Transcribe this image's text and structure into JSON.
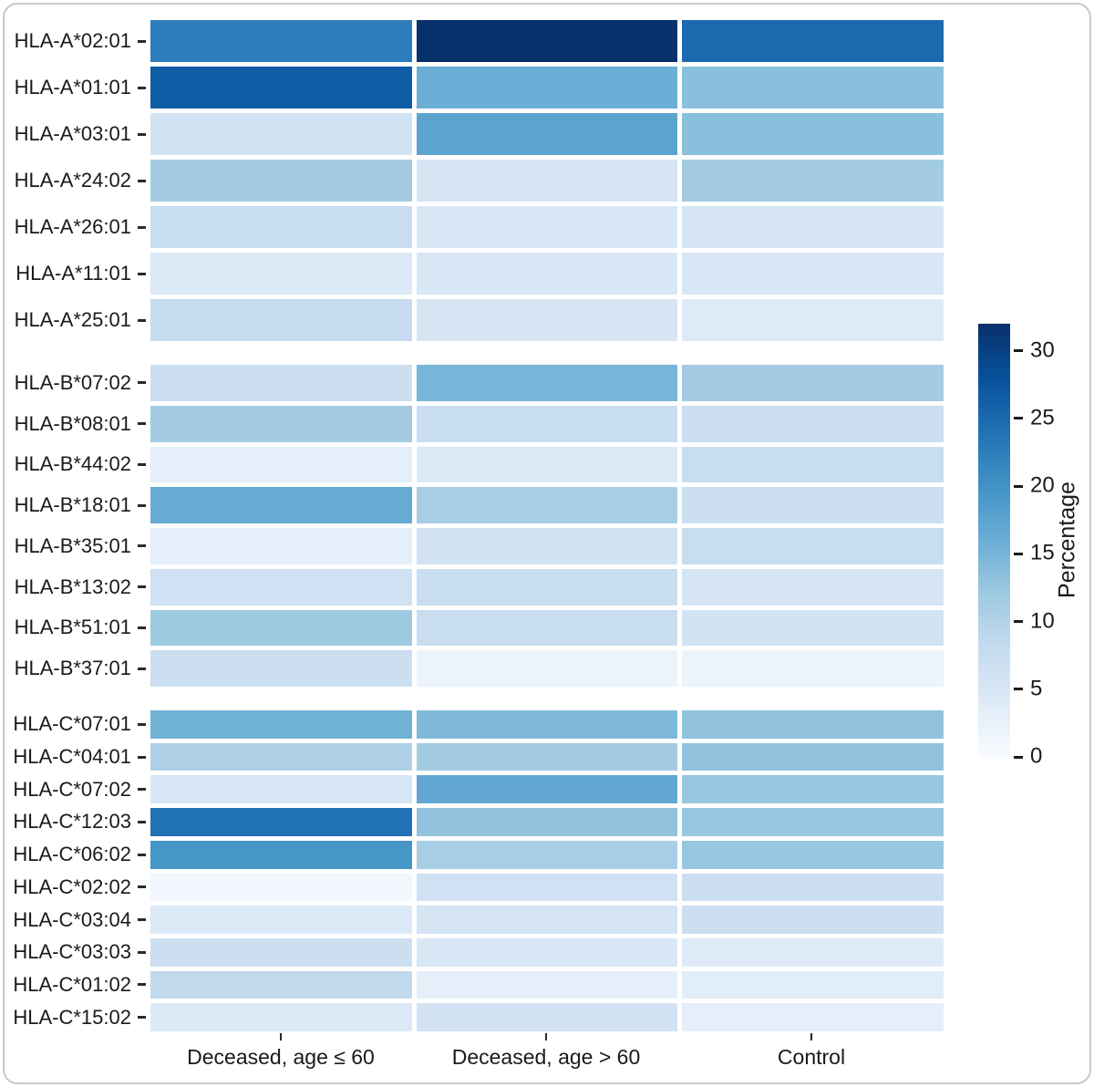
{
  "chart_data": {
    "type": "heatmap",
    "columns": [
      "Deceased, age ≤ 60",
      "Deceased, age > 60",
      "Control"
    ],
    "colorbar": {
      "label": "Percentage",
      "ticks": [
        0,
        5,
        10,
        15,
        20,
        25,
        30
      ],
      "domain": [
        0,
        32
      ],
      "palette": [
        "#f7fbff",
        "#deebf7",
        "#c6dbef",
        "#9ecae1",
        "#6baed6",
        "#4292c6",
        "#2171b5",
        "#08519c",
        "#08306b"
      ],
      "legend_position": "right"
    },
    "grid": "off",
    "groups": [
      {
        "gene": "HLA-A",
        "rows": [
          {
            "allele": "HLA-A*02:01",
            "values": [
              22.5,
              32.0,
              25.0
            ]
          },
          {
            "allele": "HLA-A*01:01",
            "values": [
              26.5,
              16.0,
              13.5
            ]
          },
          {
            "allele": "HLA-A*03:01",
            "values": [
              6.0,
              17.5,
              13.5
            ]
          },
          {
            "allele": "HLA-A*24:02",
            "values": [
              11.5,
              5.5,
              11.5
            ]
          },
          {
            "allele": "HLA-A*26:01",
            "values": [
              7.5,
              5.0,
              5.5
            ]
          },
          {
            "allele": "HLA-A*11:01",
            "values": [
              4.5,
              5.0,
              5.0
            ]
          },
          {
            "allele": "HLA-A*25:01",
            "values": [
              8.0,
              5.5,
              4.0
            ]
          }
        ]
      },
      {
        "gene": "HLA-B",
        "rows": [
          {
            "allele": "HLA-B*07:02",
            "values": [
              7.0,
              15.0,
              11.5
            ]
          },
          {
            "allele": "HLA-B*08:01",
            "values": [
              11.5,
              7.5,
              7.0
            ]
          },
          {
            "allele": "HLA-B*44:02",
            "values": [
              3.0,
              4.5,
              7.5
            ]
          },
          {
            "allele": "HLA-B*18:01",
            "values": [
              16.5,
              11.0,
              7.0
            ]
          },
          {
            "allele": "HLA-B*35:01",
            "values": [
              3.0,
              6.0,
              7.5
            ]
          },
          {
            "allele": "HLA-B*13:02",
            "values": [
              6.5,
              7.5,
              5.5
            ]
          },
          {
            "allele": "HLA-B*51:01",
            "values": [
              12.0,
              7.5,
              6.0
            ]
          },
          {
            "allele": "HLA-B*37:01",
            "values": [
              7.0,
              2.0,
              2.0
            ]
          }
        ]
      },
      {
        "gene": "HLA-C",
        "rows": [
          {
            "allele": "HLA-C*07:01",
            "values": [
              15.5,
              14.5,
              13.0
            ]
          },
          {
            "allele": "HLA-C*04:01",
            "values": [
              10.5,
              11.5,
              13.0
            ]
          },
          {
            "allele": "HLA-C*07:02",
            "values": [
              5.0,
              17.0,
              12.5
            ]
          },
          {
            "allele": "HLA-C*12:03",
            "values": [
              24.0,
              13.0,
              12.5
            ]
          },
          {
            "allele": "HLA-C*06:02",
            "values": [
              19.5,
              11.0,
              12.5
            ]
          },
          {
            "allele": "HLA-C*02:02",
            "values": [
              1.0,
              6.5,
              7.0
            ]
          },
          {
            "allele": "HLA-C*03:04",
            "values": [
              4.5,
              5.5,
              7.0
            ]
          },
          {
            "allele": "HLA-C*03:03",
            "values": [
              7.0,
              5.0,
              4.0
            ]
          },
          {
            "allele": "HLA-C*01:02",
            "values": [
              8.5,
              3.0,
              3.5
            ]
          },
          {
            "allele": "HLA-C*15:02",
            "values": [
              4.5,
              6.0,
              3.0
            ]
          }
        ]
      }
    ]
  }
}
